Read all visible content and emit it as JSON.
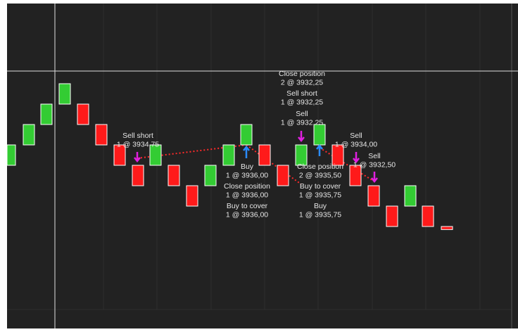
{
  "chart_data": {
    "type": "renko",
    "up_color": "#33cc33",
    "down_color": "#ff1a1a",
    "bricks": [
      {
        "open": 3935,
        "close": 3936
      },
      {
        "open": 3936,
        "close": 3937
      },
      {
        "open": 3937,
        "close": 3938
      },
      {
        "open": 3938,
        "close": 3939
      },
      {
        "open": 3938,
        "close": 3937
      },
      {
        "open": 3937,
        "close": 3936
      },
      {
        "open": 3936,
        "close": 3935
      },
      {
        "open": 3935,
        "close": 3934
      },
      {
        "open": 3935,
        "close": 3936
      },
      {
        "open": 3935,
        "close": 3934
      },
      {
        "open": 3934,
        "close": 3933
      },
      {
        "open": 3934,
        "close": 3935
      },
      {
        "open": 3935,
        "close": 3936
      },
      {
        "open": 3936,
        "close": 3937
      },
      {
        "open": 3936,
        "close": 3935
      },
      {
        "open": 3935,
        "close": 3934
      },
      {
        "open": 3935,
        "close": 3936
      },
      {
        "open": 3936,
        "close": 3937
      },
      {
        "open": 3936,
        "close": 3935
      },
      {
        "open": 3935,
        "close": 3934
      },
      {
        "open": 3934,
        "close": 3933
      },
      {
        "open": 3933,
        "close": 3932
      },
      {
        "open": 3933,
        "close": 3934
      },
      {
        "open": 3933,
        "close": 3932
      },
      {
        "open": 3932,
        "close": 3931.85
      }
    ],
    "annotations": [
      [
        "Sell short",
        "1 @ 3934,75"
      ],
      [
        "Buy",
        "1 @ 3936,00"
      ],
      [
        "Close position",
        "1 @ 3936,00"
      ],
      [
        "Buy to cover",
        "1 @ 3936,00"
      ],
      [
        "Close position",
        "2 @ 3932,25"
      ],
      [
        "Sell short",
        "1 @ 3932,25"
      ],
      [
        "Sell",
        "1 @ 3932,25"
      ],
      [
        "Close position",
        "2 @ 3935,50"
      ],
      [
        "Buy to cover",
        "1 @ 3935,75"
      ],
      [
        "Buy",
        "1 @ 3935,75"
      ],
      [
        "Sell",
        "1 @ 3934,00"
      ],
      [
        "Sell",
        "1 @ 3932,50"
      ]
    ]
  }
}
